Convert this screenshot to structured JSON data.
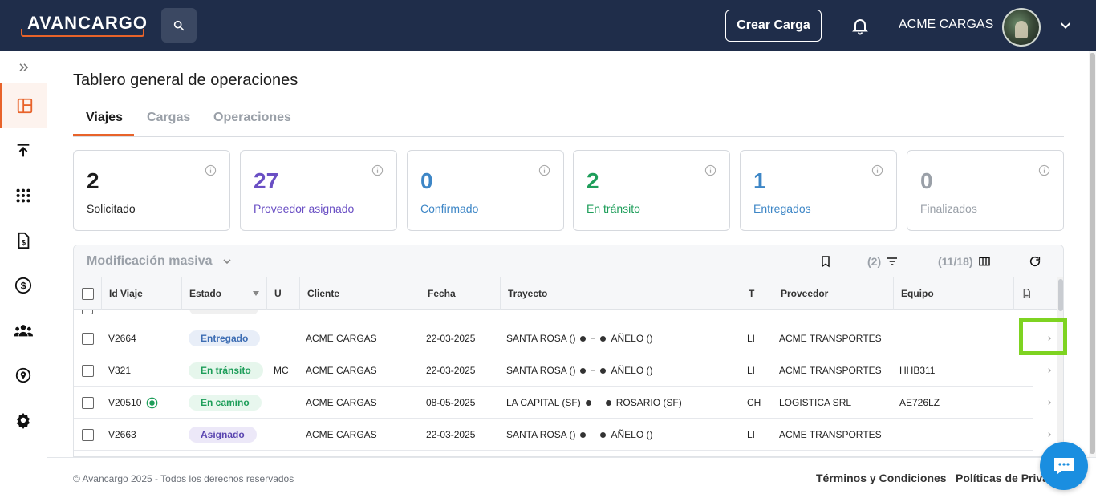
{
  "header": {
    "logo_text": "AVANCARGO",
    "create_label": "Crear Carga",
    "user_name": "ACME CARGAS",
    "brand_color": "#e8632a",
    "bg_color": "#1f2d4a"
  },
  "sidebar": {
    "items": [
      {
        "icon": "dashboard-icon",
        "active": true
      },
      {
        "icon": "upload-icon"
      },
      {
        "icon": "apps-grid-icon"
      },
      {
        "icon": "invoice-icon"
      },
      {
        "icon": "dollar-icon"
      },
      {
        "icon": "group-icon"
      },
      {
        "icon": "location-icon"
      },
      {
        "icon": "settings-icon"
      }
    ]
  },
  "page": {
    "title": "Tablero general de operaciones",
    "tabs": [
      "Viajes",
      "Cargas",
      "Operaciones"
    ],
    "active_tab": "Viajes"
  },
  "cards": [
    {
      "value": "2",
      "label": "Solicitado",
      "color": "#1c1c1c"
    },
    {
      "value": "27",
      "label": "Proveedor asignado",
      "color": "#6a4fc4"
    },
    {
      "value": "0",
      "label": "Confirmado",
      "color": "#3d86c6"
    },
    {
      "value": "2",
      "label": "En tránsito",
      "color": "#1e9e5a"
    },
    {
      "value": "1",
      "label": "Entregados",
      "color": "#3d86c6"
    },
    {
      "value": "0",
      "label": "Finalizados",
      "color": "#9aa0a8"
    }
  ],
  "toolbar": {
    "mass_label": "Modificación masiva",
    "filter_count": "(2)",
    "columns_count": "(11/18)"
  },
  "table": {
    "headers": [
      "Id Viaje",
      "Estado",
      "U",
      "Cliente",
      "Fecha",
      "Trayecto",
      "T",
      "Proveedor",
      "Equipo"
    ],
    "rows": [
      {
        "id": "V2664",
        "estado": "Entregado",
        "estado_bg": "#e8eef8",
        "estado_fg": "#3d6db3",
        "u": "",
        "cliente": "ACME CARGAS",
        "fecha": "22-03-2025",
        "origen": "SANTA ROSA ()",
        "destino": "AÑELO ()",
        "t": "LI",
        "proveedor": "ACME TRANSPORTES",
        "equipo": "",
        "verified": false
      },
      {
        "id": "V321",
        "estado": "En tránsito",
        "estado_bg": "#e6f6ec",
        "estado_fg": "#1e9e5a",
        "u": "MC",
        "cliente": "ACME CARGAS",
        "fecha": "22-03-2025",
        "origen": "SANTA ROSA ()",
        "destino": "AÑELO ()",
        "t": "LI",
        "proveedor": "ACME TRANSPORTES",
        "equipo": "HHB311",
        "verified": false
      },
      {
        "id": "V20510",
        "estado": "En camino",
        "estado_bg": "#e8f7ee",
        "estado_fg": "#1e9e5a",
        "u": "",
        "cliente": "ACME CARGAS",
        "fecha": "08-05-2025",
        "origen": "LA CAPITAL (SF)",
        "destino": "ROSARIO (SF)",
        "t": "CH",
        "proveedor": "LOGISTICA SRL",
        "equipo": "AE726LZ",
        "verified": true
      },
      {
        "id": "V2663",
        "estado": "Asignado",
        "estado_bg": "#ece8f8",
        "estado_fg": "#5a45b0",
        "u": "",
        "cliente": "ACME CARGAS",
        "fecha": "22-03-2025",
        "origen": "SANTA ROSA ()",
        "destino": "AÑELO ()",
        "t": "LI",
        "proveedor": "ACME TRANSPORTES",
        "equipo": "",
        "verified": false
      }
    ]
  },
  "footer": {
    "copyright": "© Avancargo 2025 - Todos los derechos reservados",
    "terms": "Términos y Condiciones",
    "privacy": "Políticas de Priva"
  }
}
